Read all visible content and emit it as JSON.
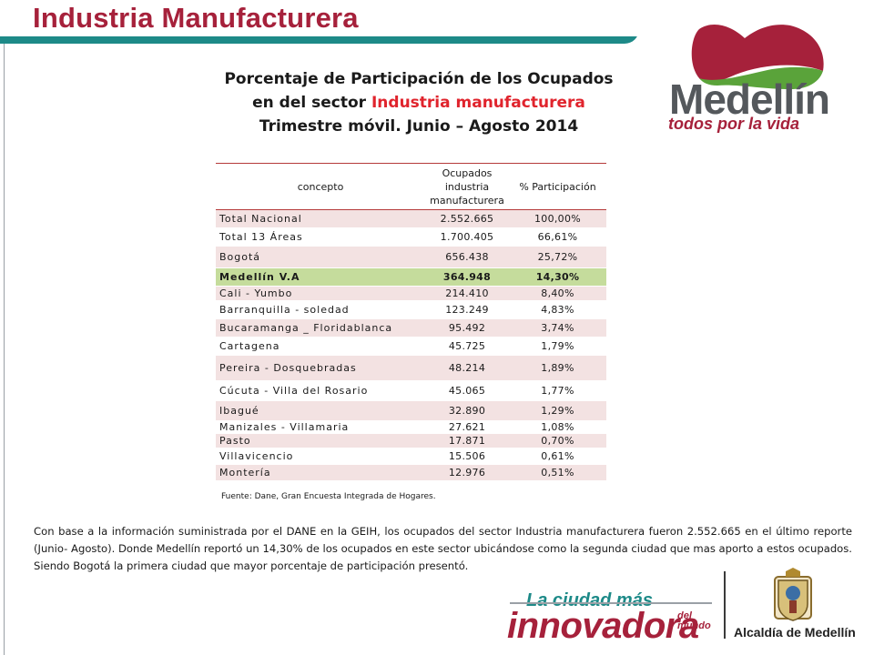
{
  "header": {
    "title": "Industria Manufacturera"
  },
  "logo": {
    "wordmark": "Medellín",
    "tagline": "todos por la vida"
  },
  "chart_title": {
    "line1": "Porcentaje de Participación de los Ocupados",
    "line2_prefix": "en del sector ",
    "line2_highlight": "Industria manufacturera",
    "line3": "Trimestre móvil. Junio – Agosto 2014"
  },
  "table": {
    "headers": {
      "col1": "concepto",
      "col2_line1": "Ocupados",
      "col2_line2": "industria",
      "col2_line3": "manufacturera",
      "col3": "% Participación"
    },
    "rows": [
      {
        "concepto": "Total Nacional",
        "ocupados": "2.552.665",
        "participacion": "100,00%"
      },
      {
        "concepto": "Total 13 Áreas",
        "ocupados": "1.700.405",
        "participacion": "66,61%"
      },
      {
        "concepto": "Bogotá",
        "ocupados": "656.438",
        "participacion": "25,72%"
      },
      {
        "concepto": "Medellín V.A",
        "ocupados": "364.948",
        "participacion": "14,30%"
      },
      {
        "concepto": "Cali - Yumbo",
        "ocupados": "214.410",
        "participacion": "8,40%"
      },
      {
        "concepto": "Barranquilla - soledad",
        "ocupados": "123.249",
        "participacion": "4,83%"
      },
      {
        "concepto": "Bucaramanga _ Floridablanca",
        "ocupados": "95.492",
        "participacion": "3,74%"
      },
      {
        "concepto": "Cartagena",
        "ocupados": "45.725",
        "participacion": "1,79%"
      },
      {
        "concepto": "Pereira - Dosquebradas",
        "ocupados": "48.214",
        "participacion": "1,89%"
      },
      {
        "concepto": "Cúcuta - Villa del Rosario",
        "ocupados": "45.065",
        "participacion": "1,77%"
      },
      {
        "concepto": "Ibagué",
        "ocupados": "32.890",
        "participacion": "1,29%"
      },
      {
        "concepto": "Manizales - Villamaria",
        "ocupados": "27.621",
        "participacion": "1,08%"
      },
      {
        "concepto": "Pasto",
        "ocupados": "17.871",
        "participacion": "0,70%"
      },
      {
        "concepto": "Villavicencio",
        "ocupados": "15.506",
        "participacion": "0,61%"
      },
      {
        "concepto": "Montería",
        "ocupados": "12.976",
        "participacion": "0,51%"
      }
    ],
    "highlighted_row": "Medellín V.A"
  },
  "source": "Fuente: Dane, Gran Encuesta Integrada de Hogares.",
  "body_text": "Con base a la información suministrada por el DANE en la GEIH, los ocupados del sector Industria manufacturera fueron 2.552.665 en el último reporte (Junio- Agosto). Donde Medellín reportó un 14,30% de los ocupados en este sector ubicándose como la segunda ciudad que mas aporto a estos ocupados. Siendo Bogotá la primera ciudad que mayor porcentaje de participación presentó.",
  "footer": {
    "slogan_top": "La ciudad más",
    "slogan_main": "innovadora",
    "slogan_small1": "del",
    "slogan_small2": "mundo",
    "alcaldia": "Alcaldía de Medellín"
  },
  "colors": {
    "brand_red": "#a6213b",
    "teal": "#1d8a88",
    "highlight_green": "#c5dc9c",
    "row_pink": "#f3e2e2",
    "title_highlight": "#e0242d"
  }
}
